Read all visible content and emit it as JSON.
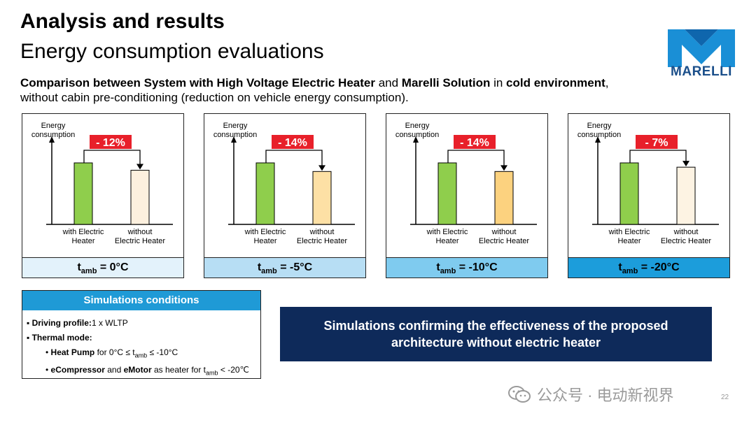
{
  "header": {
    "title": "Analysis and results",
    "subtitle": "Energy consumption evaluations"
  },
  "brand": {
    "name": "MARELLI",
    "color": "#1b4f8a",
    "logo_color": "#1a8fd6"
  },
  "intro": {
    "part1_bold": "Comparison between System with High Voltage Electric Heater",
    "part2": " and ",
    "part3_bold": "Marelli Solution",
    "part4": " in ",
    "part5_bold": "cold environment",
    "part6": ",",
    "line2": "without cabin pre-conditioning (reduction on vehicle energy consumption)."
  },
  "chart_data": [
    {
      "type": "bar",
      "ylabel": "Energy consumption",
      "categories": [
        "with Electric Heater",
        "without Electric Heater"
      ],
      "values": [
        100,
        88
      ],
      "reduction_label": "- 12%",
      "condition": "0°C",
      "bar_colors": [
        "#8fce4c",
        "#fdf0de"
      ],
      "footer_color": "#e3f2fb"
    },
    {
      "type": "bar",
      "ylabel": "Energy consumption",
      "categories": [
        "with Electric Heater",
        "without Electric Heater"
      ],
      "values": [
        100,
        86
      ],
      "reduction_label": "- 14%",
      "condition": "-5°C",
      "bar_colors": [
        "#8fce4c",
        "#fde0a5"
      ],
      "footer_color": "#b7def4"
    },
    {
      "type": "bar",
      "ylabel": "Energy consumption",
      "categories": [
        "with Electric Heater",
        "without Electric Heater"
      ],
      "values": [
        100,
        86
      ],
      "reduction_label": "- 14%",
      "condition": "-10°C",
      "bar_colors": [
        "#8fce4c",
        "#fcd27f"
      ],
      "footer_color": "#7fcbef"
    },
    {
      "type": "bar",
      "ylabel": "Energy consumption",
      "categories": [
        "with Electric Heater",
        "without Electric Heater"
      ],
      "values": [
        100,
        93
      ],
      "reduction_label": "- 7%",
      "condition": "-20°C",
      "bar_colors": [
        "#8fce4c",
        "#fdf3e3"
      ],
      "footer_color": "#1c9ddb"
    }
  ],
  "temp_label": "t",
  "temp_sub": "amb",
  "sim": {
    "heading": "Simulations conditions",
    "driving_label": "Driving profile:",
    "driving_value": "1 x WLTP",
    "thermal_label": "Thermal mode:",
    "heatpump_bold": "Heat Pump",
    "heatpump_pre": " for 0°C ≤ t",
    "heatpump_post": " ≤ -10°C",
    "ecomp_bold": "eCompressor",
    "ecomp_and": " and ",
    "emotor_bold": "eMotor",
    "ecomp_pre": " as heater for t",
    "ecomp_post": " < -20℃",
    "sub": "amb"
  },
  "banner": {
    "line1": "Simulations confirming the effectiveness of the proposed",
    "line2": "architecture without electric heater"
  },
  "watermark": "公众号 · 电动新视界",
  "page_number": "22"
}
